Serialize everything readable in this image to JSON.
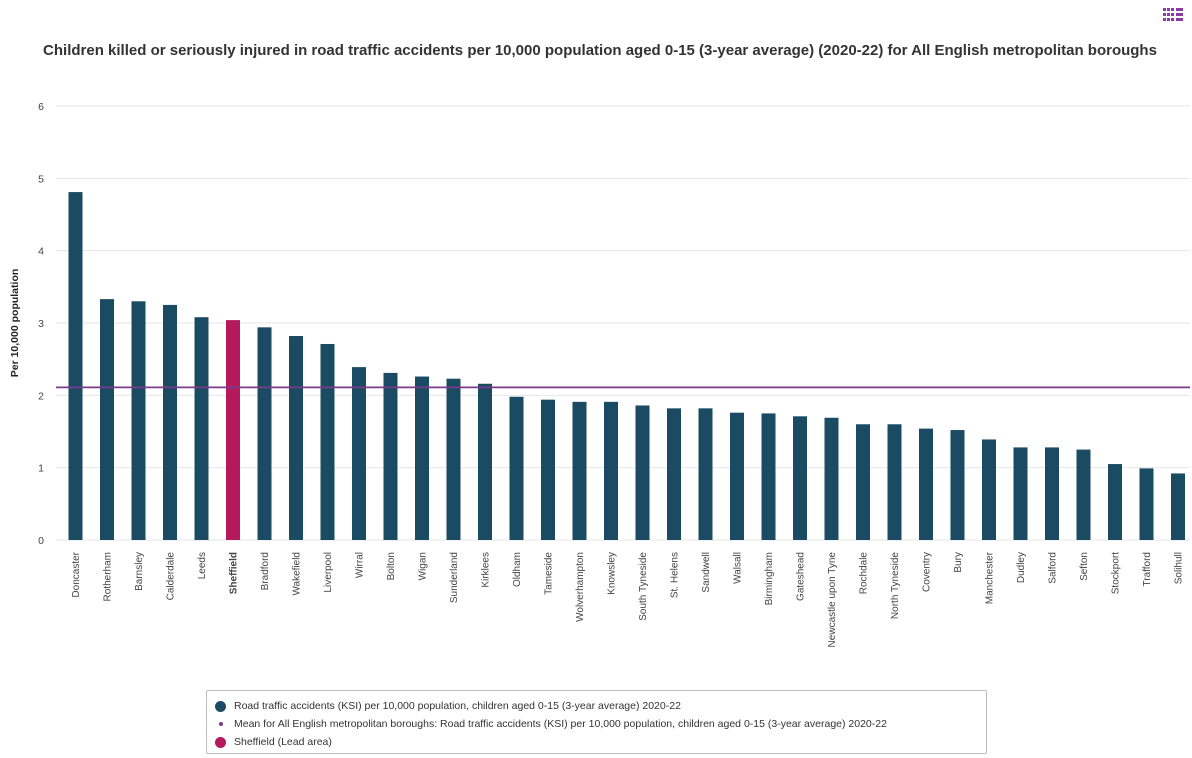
{
  "colors": {
    "bar": "#1a4b63",
    "highlight": "#b3195c",
    "mean_line": "#7b3a8a",
    "menu_icon": "#8e3aa6",
    "grid": "#e6e6e6"
  },
  "menu": {
    "icon": "grid-menu-icon"
  },
  "legend": {
    "items": [
      {
        "label": "Road traffic accidents (KSI) per 10,000 population, children aged 0-15 (3-year average) 2020-22",
        "color": "#1a4b63",
        "marker": "circle"
      },
      {
        "label": "Mean for All English metropolitan boroughs: Road traffic accidents (KSI) per 10,000 population, children aged 0-15 (3-year average) 2020-22",
        "color": "#7b3a8a",
        "marker": "dot"
      },
      {
        "label": "Sheffield (Lead area)",
        "color": "#b3195c",
        "marker": "circle"
      }
    ]
  },
  "chart_data": {
    "type": "bar",
    "title": "Children killed or seriously injured in road traffic accidents per 10,000 population aged 0-15 (3-year average) (2020-22) for All English metropolitan boroughs",
    "xlabel": "",
    "ylabel": "Per 10,000 population",
    "ylim": [
      0,
      6
    ],
    "yticks": [
      "0",
      "1",
      "2",
      "3",
      "4",
      "5",
      "6"
    ],
    "grid": true,
    "legend_position": "bottom",
    "highlight_category": "Sheffield",
    "mean_value": 2.11,
    "categories": [
      "Doncaster",
      "Rotherham",
      "Barnsley",
      "Calderdale",
      "Leeds",
      "Sheffield",
      "Bradford",
      "Wakefield",
      "Liverpool",
      "Wirral",
      "Bolton",
      "Wigan",
      "Sunderland",
      "Kirklees",
      "Oldham",
      "Tameside",
      "Wolverhampton",
      "Knowsley",
      "South Tyneside",
      "St. Helens",
      "Sandwell",
      "Walsall",
      "Birmingham",
      "Gateshead",
      "Newcastle upon Tyne",
      "Rochdale",
      "North Tyneside",
      "Coventry",
      "Bury",
      "Manchester",
      "Dudley",
      "Salford",
      "Sefton",
      "Stockport",
      "Trafford",
      "Solihull"
    ],
    "values": [
      4.81,
      3.33,
      3.3,
      3.25,
      3.08,
      3.04,
      2.94,
      2.82,
      2.71,
      2.39,
      2.31,
      2.26,
      2.23,
      2.16,
      1.98,
      1.94,
      1.91,
      1.91,
      1.86,
      1.82,
      1.82,
      1.76,
      1.75,
      1.71,
      1.69,
      1.6,
      1.6,
      1.54,
      1.52,
      1.39,
      1.28,
      1.28,
      1.25,
      1.05,
      0.99,
      0.92
    ]
  }
}
